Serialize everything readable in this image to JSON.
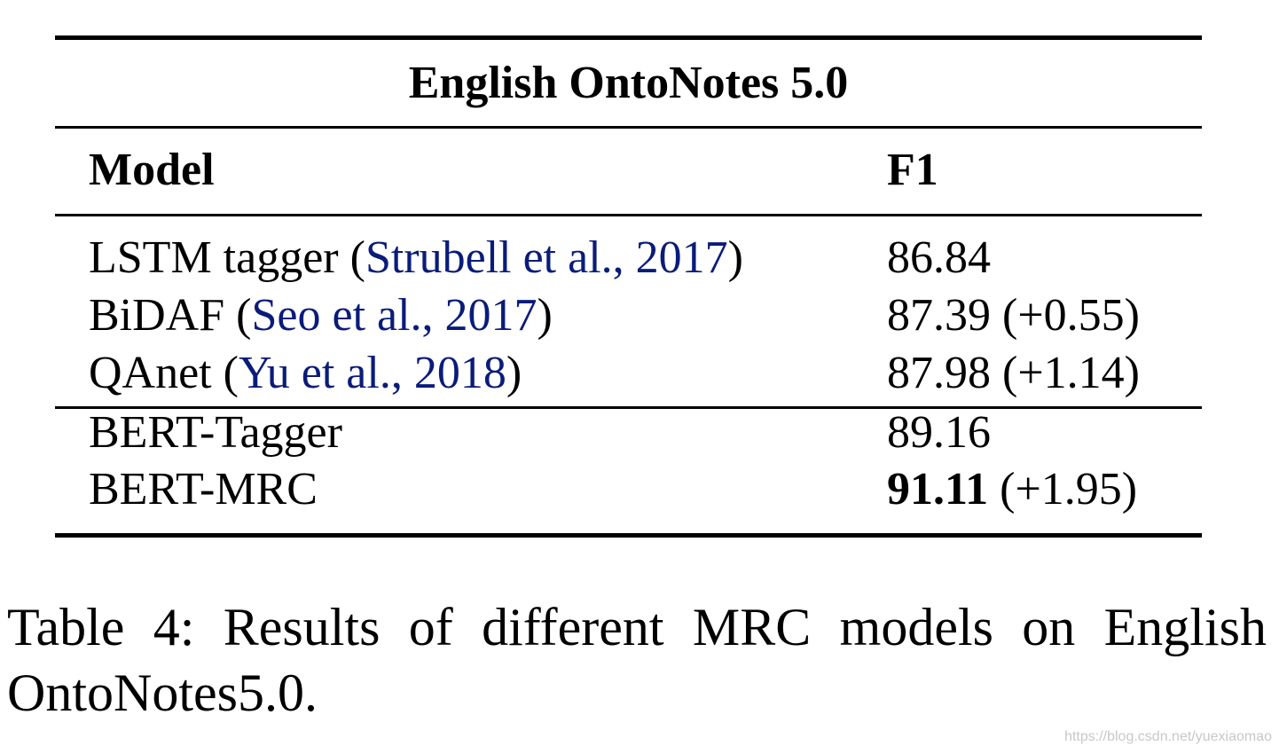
{
  "table": {
    "dataset_title": "English OntoNotes 5.0",
    "columns": [
      "Model",
      "F1"
    ],
    "rows": [
      {
        "model": "LSTM tagger",
        "cite": "Strubell et al., 2017",
        "f1": "86.84",
        "delta": ""
      },
      {
        "model": "BiDAF",
        "cite": "Seo et al., 2017",
        "f1": "87.39",
        "delta": "(+0.55)"
      },
      {
        "model": "QAnet",
        "cite": "Yu et al., 2018",
        "f1": "87.98",
        "delta": "(+1.14)"
      },
      {
        "model": "BERT-Tagger",
        "cite": "",
        "f1": "89.16",
        "delta": ""
      },
      {
        "model": "BERT-MRC",
        "cite": "",
        "f1": "91.11",
        "delta": "(+1.95)"
      }
    ]
  },
  "caption": "Table 4: Results of different MRC models on English OntoNotes5.0.",
  "watermark": "https://blog.csdn.net/yuexiaomao",
  "colors": {
    "citation": "#0a1c7a",
    "text": "#000000",
    "watermark": "#c8c8c8"
  }
}
